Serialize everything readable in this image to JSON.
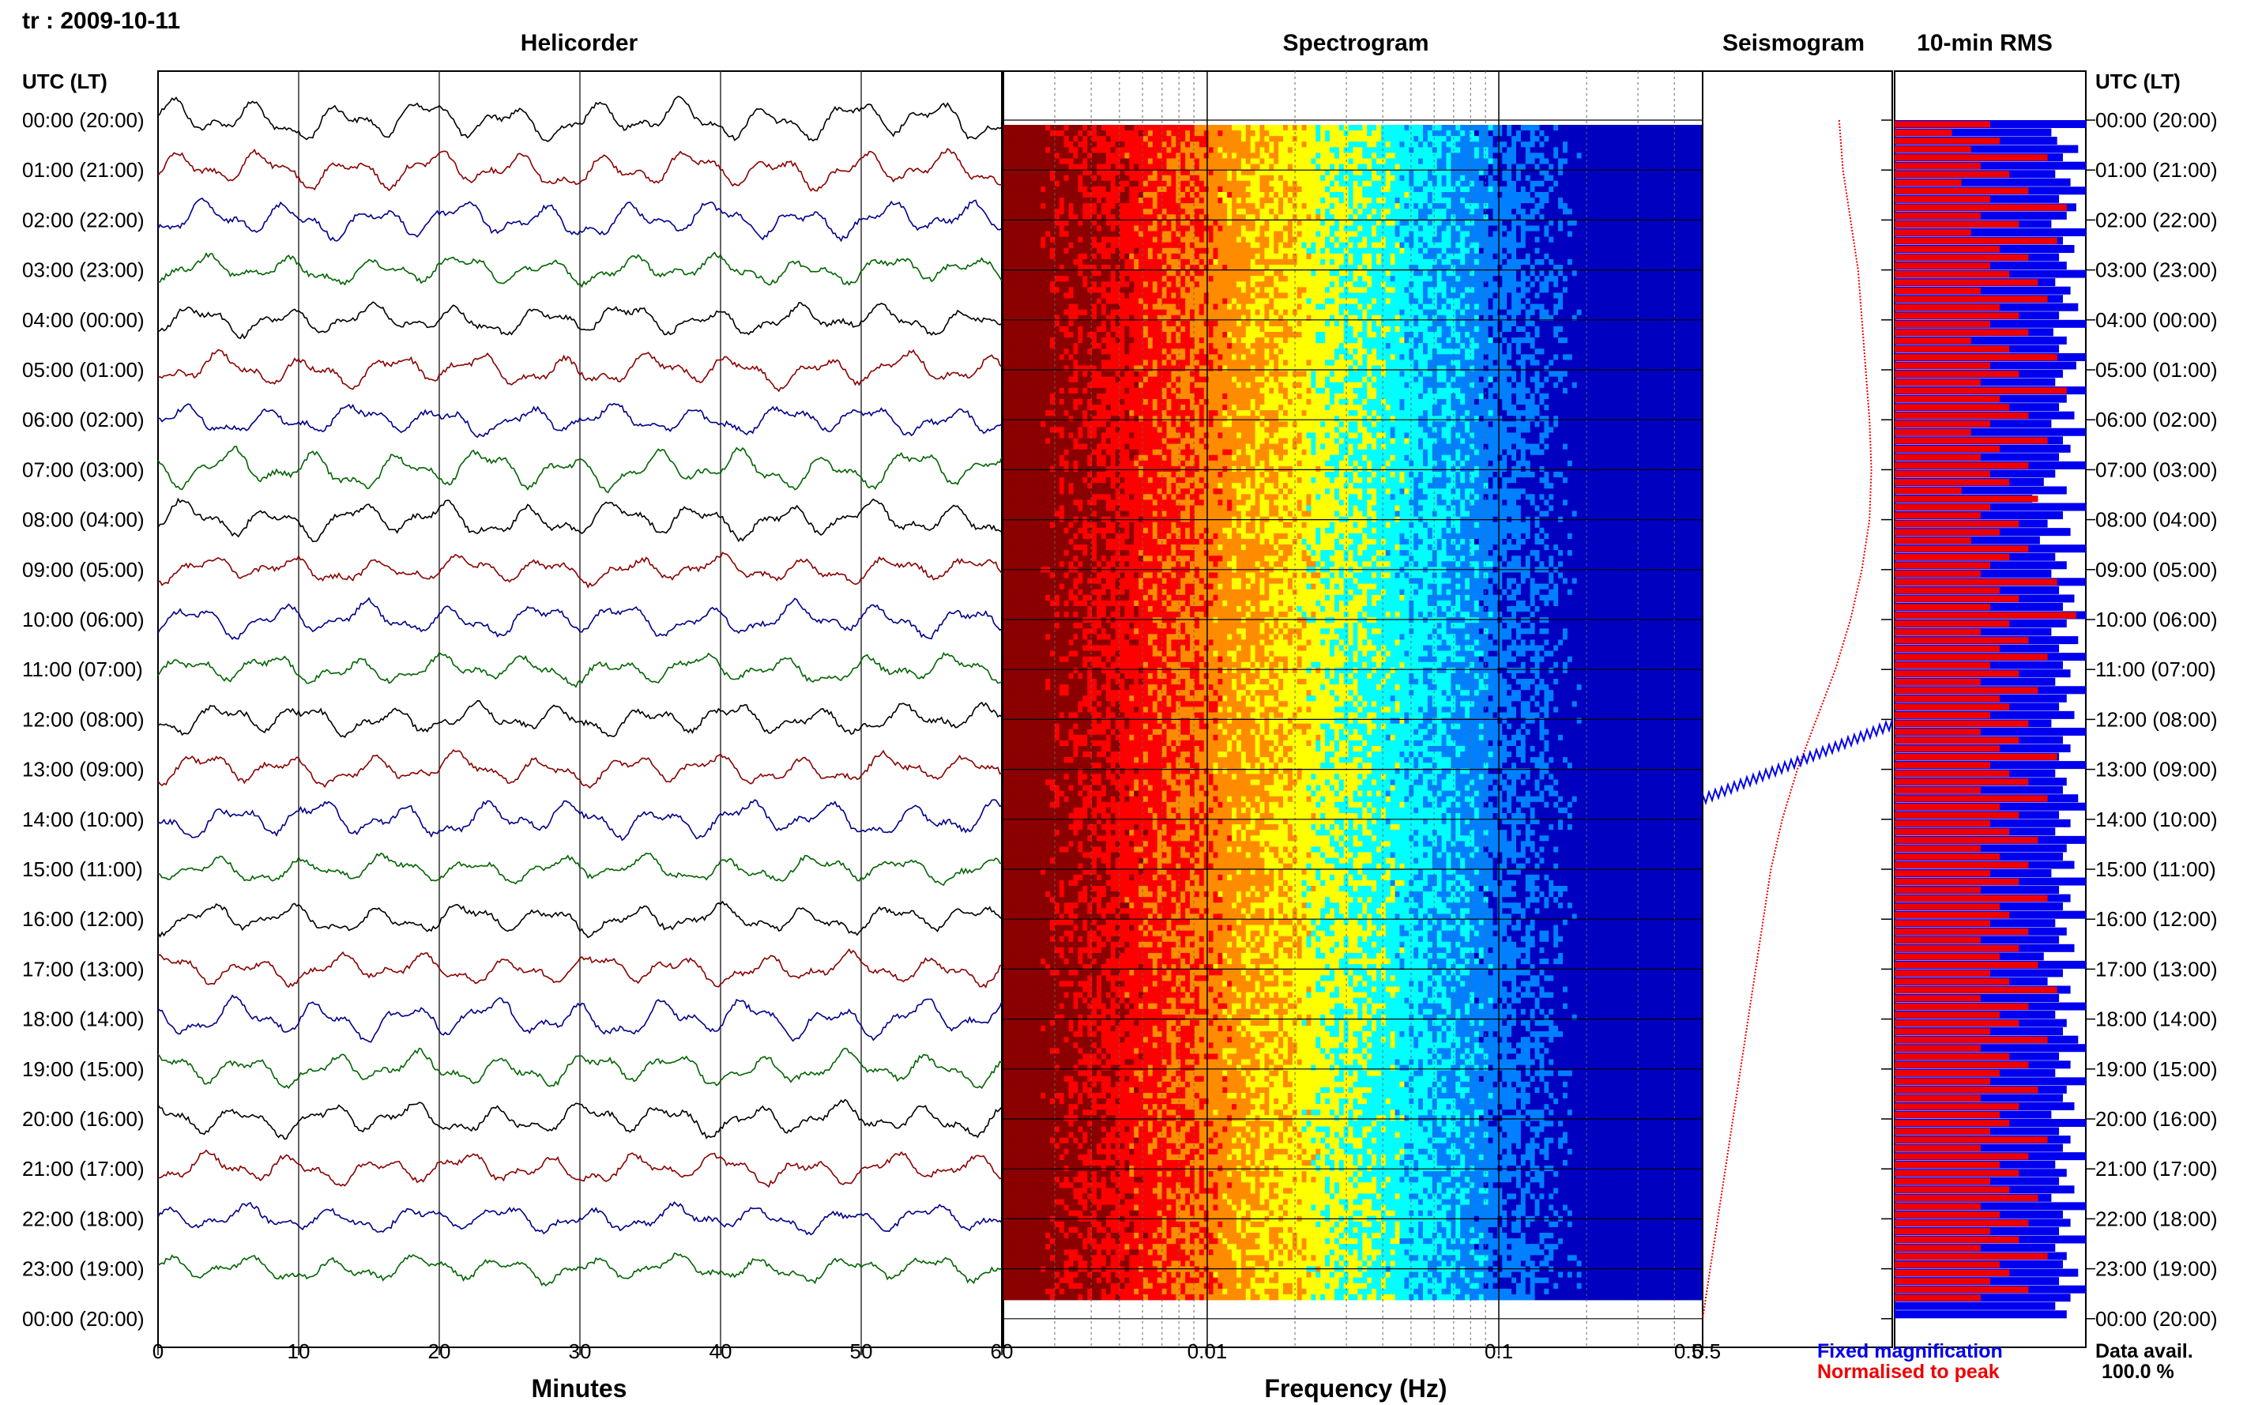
{
  "header": {
    "station_date": "tr : 2009-10-11"
  },
  "panels": {
    "helicorder": "Helicorder",
    "spectrogram": "Spectrogram",
    "seismogram": "Seismogram",
    "rms": "10-min RMS"
  },
  "time_axis_title": "UTC (LT)",
  "time_labels": [
    "00:00 (20:00)",
    "01:00 (21:00)",
    "02:00 (22:00)",
    "03:00 (23:00)",
    "04:00 (00:00)",
    "05:00 (01:00)",
    "06:00 (02:00)",
    "07:00 (03:00)",
    "08:00 (04:00)",
    "09:00 (05:00)",
    "10:00 (06:00)",
    "11:00 (07:00)",
    "12:00 (08:00)",
    "13:00 (09:00)",
    "14:00 (10:00)",
    "15:00 (11:00)",
    "16:00 (12:00)",
    "17:00 (13:00)",
    "18:00 (14:00)",
    "19:00 (15:00)",
    "20:00 (16:00)",
    "21:00 (17:00)",
    "22:00 (18:00)",
    "23:00 (19:00)",
    "00:00 (20:00)"
  ],
  "helicorder_axis": {
    "title": "Minutes",
    "ticks": [
      "0",
      "10",
      "20",
      "30",
      "40",
      "50",
      "60"
    ]
  },
  "spectrogram_axis": {
    "title": "Frequency (Hz)",
    "ticks": [
      "0.01",
      "0.1",
      "0.5"
    ]
  },
  "seismogram_axis": {
    "ticks": [
      "0.5"
    ]
  },
  "legend": {
    "fixed": "Fixed magnification",
    "normalised": "Normalised to peak",
    "fixed_color": "#0000ee",
    "normalised_color": "#ee0000"
  },
  "availability": {
    "label": "Data avail.",
    "value": "100.0 %"
  },
  "chart_data": [
    {
      "type": "line",
      "name": "helicorder",
      "title": "Helicorder",
      "xlabel": "Minutes",
      "xlim": [
        0,
        60
      ],
      "rows": 24,
      "row_labels_utc": [
        "00:00",
        "01:00",
        "02:00",
        "03:00",
        "04:00",
        "05:00",
        "06:00",
        "07:00",
        "08:00",
        "09:00",
        "10:00",
        "11:00",
        "12:00",
        "13:00",
        "14:00",
        "15:00",
        "16:00",
        "17:00",
        "18:00",
        "19:00",
        "20:00",
        "21:00",
        "22:00",
        "23:00"
      ],
      "trace_colors": [
        "#000000",
        "#8b0000",
        "#00008b",
        "#006400"
      ],
      "grid": true
    },
    {
      "type": "heatmap",
      "name": "spectrogram",
      "title": "Spectrogram",
      "xlabel": "Frequency (Hz)",
      "x_scale": "log",
      "xlim": [
        0.002,
        0.5
      ],
      "rows": 24,
      "colormap": [
        "#8b0000",
        "#ff0000",
        "#ff8c00",
        "#ffff00",
        "#00ffff",
        "#0080ff",
        "#0000c0"
      ],
      "grid": true
    },
    {
      "type": "line",
      "name": "seismogram",
      "title": "Seismogram",
      "xlim": [
        0,
        0.5
      ],
      "series": [
        {
          "name": "Normalised to peak",
          "color": "#ee0000",
          "y_hours": [
            0,
            1,
            2,
            3,
            4,
            5,
            6,
            7,
            8,
            9,
            10,
            11,
            12,
            13,
            14,
            15,
            16,
            17,
            18,
            19,
            20,
            21,
            22,
            23,
            24
          ],
          "values": [
            0.36,
            0.37,
            0.39,
            0.41,
            0.42,
            0.43,
            0.44,
            0.445,
            0.44,
            0.42,
            0.39,
            0.35,
            0.3,
            0.25,
            0.21,
            0.18,
            0.16,
            0.14,
            0.12,
            0.1,
            0.08,
            0.06,
            0.04,
            0.02,
            0.0
          ]
        },
        {
          "name": "Fixed magnification",
          "color": "#0000ee",
          "y_hours": [
            12.1,
            13.6
          ],
          "values": [
            0.5,
            0.0
          ]
        }
      ]
    },
    {
      "type": "bar",
      "name": "10-min RMS",
      "title": "10-min RMS",
      "orientation": "horizontal",
      "bins": 144,
      "series": [
        {
          "name": "Fixed magnification",
          "color": "#0000ee",
          "values": [
            1.0,
            0.82,
            0.85,
            0.96,
            0.88,
            1.0,
            0.84,
            0.92,
            1.0,
            0.86,
            0.95,
            0.9,
            0.82,
            1.0,
            0.88,
            0.94,
            0.86,
            0.9,
            1.0,
            0.84,
            0.92,
            0.88,
            0.96,
            0.86,
            1.0,
            0.83,
            0.9,
            0.86,
            1.0,
            0.95,
            0.88,
            0.84,
            1.0,
            0.9,
            0.86,
            0.94,
            0.82,
            1.0,
            0.88,
            0.92,
            0.86,
            1.0,
            0.84,
            0.78,
            0.9,
            0.72,
            1.0,
            0.88,
            0.8,
            0.92,
            0.76,
            1.0,
            0.84,
            0.9,
            0.82,
            1.0,
            0.86,
            0.94,
            0.88,
            1.0,
            0.9,
            0.82,
            0.96,
            0.86,
            1.0,
            0.88,
            0.92,
            0.84,
            1.0,
            0.9,
            0.86,
            0.94,
            0.82,
            1.0,
            0.88,
            0.92,
            0.86,
            1.0,
            0.84,
            0.9,
            0.88,
            0.96,
            1.0,
            0.86,
            0.92,
            0.84,
            1.0,
            0.9,
            0.88,
            0.94,
            0.82,
            1.0,
            0.86,
            0.92,
            0.88,
            1.0,
            0.84,
            0.9,
            0.86,
            0.94,
            0.78,
            1.0,
            0.88,
            0.8,
            0.92,
            0.86,
            1.0,
            0.84,
            0.9,
            0.88,
            0.96,
            1.0,
            0.86,
            0.92,
            0.84,
            1.0,
            0.9,
            0.88,
            0.94,
            0.82,
            1.0,
            0.86,
            0.92,
            0.88,
            1.0,
            0.84,
            0.9,
            0.86,
            0.94,
            0.82,
            1.0,
            0.88,
            0.92,
            0.86,
            1.0,
            0.84,
            0.9,
            0.88,
            0.96,
            0.86,
            1.0,
            0.92,
            0.84,
            0.9
          ]
        },
        {
          "name": "Normalised to peak",
          "color": "#ee0000",
          "values": [
            0.5,
            0.3,
            0.55,
            0.4,
            0.8,
            0.45,
            0.6,
            0.35,
            0.7,
            0.5,
            0.9,
            0.45,
            0.65,
            0.4,
            0.85,
            0.55,
            0.7,
            0.5,
            0.6,
            0.75,
            0.45,
            0.8,
            0.55,
            0.65,
            0.5,
            0.7,
            0.4,
            0.6,
            0.85,
            0.5,
            0.65,
            0.45,
            0.9,
            0.55,
            0.6,
            0.7,
            0.5,
            0.4,
            0.8,
            0.55,
            0.45,
            0.7,
            0.5,
            0.6,
            0.35,
            0.75,
            0.5,
            0.45,
            0.65,
            0.55,
            0.4,
            0.7,
            0.6,
            0.5,
            0.45,
            0.85,
            0.55,
            0.65,
            0.5,
            0.95,
            0.6,
            0.45,
            0.7,
            0.55,
            0.8,
            0.5,
            0.65,
            0.45,
            0.75,
            0.55,
            0.6,
            0.5,
            0.7,
            0.45,
            0.65,
            0.55,
            0.85,
            0.5,
            0.6,
            0.7,
            0.45,
            0.8,
            0.55,
            0.65,
            0.5,
            0.6,
            0.75,
            0.45,
            0.55,
            0.7,
            0.5,
            0.65,
            0.45,
            0.8,
            0.55,
            0.6,
            0.5,
            0.7,
            0.45,
            0.65,
            0.55,
            0.75,
            0.5,
            0.6,
            0.85,
            0.45,
            0.7,
            0.55,
            0.65,
            0.5,
            0.8,
            0.45,
            0.6,
            0.7,
            0.55,
            0.5,
            0.75,
            0.45,
            0.65,
            0.55,
            0.6,
            0.5,
            0.8,
            0.45,
            0.7,
            0.55,
            0.65,
            0.5,
            0.6,
            0.75,
            0.45,
            0.55,
            0.7,
            0.5,
            0.65,
            0.45,
            0.8,
            0.55,
            0.6,
            0.5,
            0.7,
            0.45
          ]
        }
      ],
      "availability_percent": 100.0
    }
  ]
}
